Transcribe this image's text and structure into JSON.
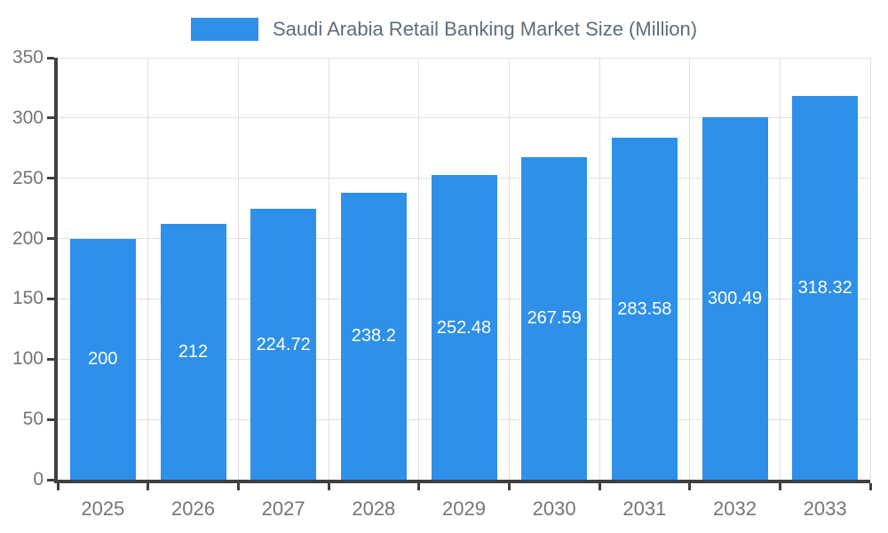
{
  "chart_data": {
    "type": "bar",
    "title": "Saudi Arabia Retail Banking Market Size (Million)",
    "categories": [
      "2025",
      "2026",
      "2027",
      "2028",
      "2029",
      "2030",
      "2031",
      "2032",
      "2033"
    ],
    "values": [
      200,
      212,
      224.72,
      238.2,
      252.48,
      267.59,
      283.58,
      300.49,
      318.32
    ],
    "value_labels": [
      "200",
      "212",
      "224.72",
      "238.2",
      "252.48",
      "267.59",
      "283.58",
      "300.49",
      "318.32"
    ],
    "xlabel": "",
    "ylabel": "",
    "ylim": [
      0,
      350
    ],
    "yticks": [
      0,
      50,
      100,
      150,
      200,
      250,
      300,
      350
    ],
    "grid": true,
    "legend_position": "top",
    "colors": {
      "bar": "#2E90E8",
      "value_label": "#ffffff",
      "axis": "#404040",
      "tick_label": "#757575",
      "grid": "#e0e0e0",
      "title": "#5d6d7b",
      "background": "#ffffff"
    }
  }
}
